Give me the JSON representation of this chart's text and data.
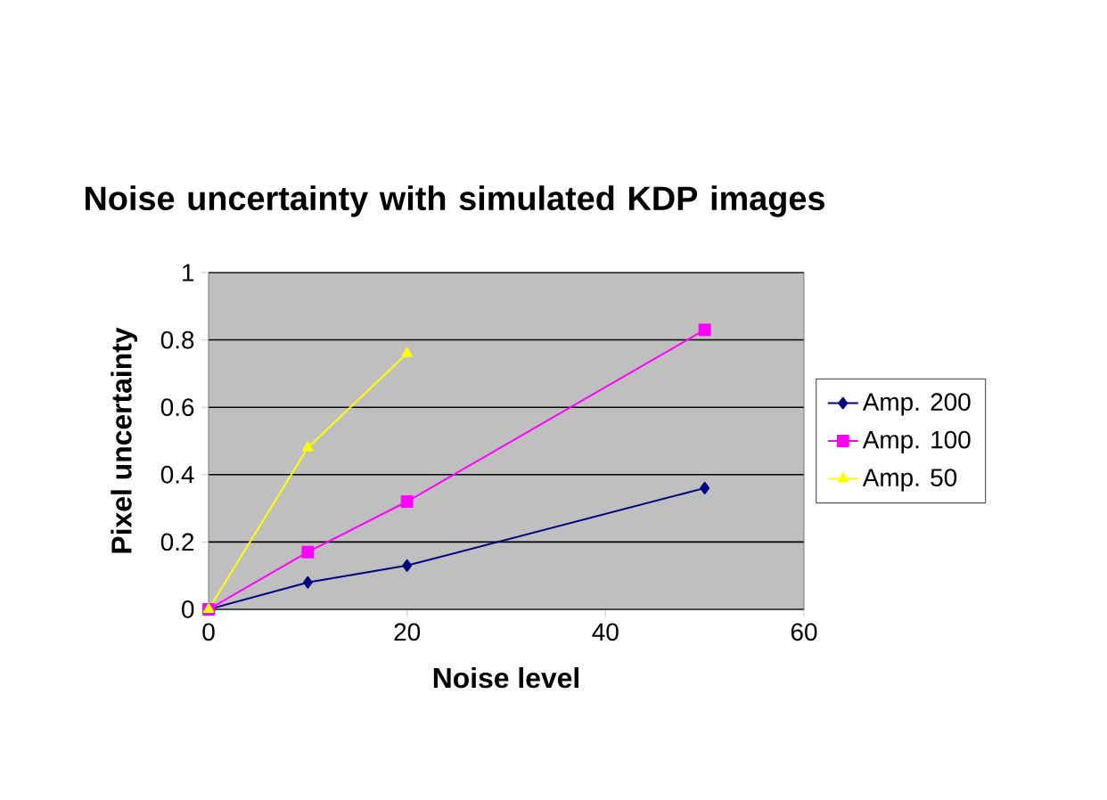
{
  "chart_data": {
    "type": "line",
    "title": "Noise uncertainty with simulated KDP images",
    "xlabel": "Noise level",
    "ylabel": "Pixel uncertainty",
    "xlim": [
      0,
      60
    ],
    "xticks": [
      0,
      20,
      40,
      60
    ],
    "ylim": [
      0,
      1
    ],
    "yticks": [
      0,
      0.2,
      0.4,
      0.6,
      0.8,
      1
    ],
    "grid": "y",
    "legend": "right",
    "series": [
      {
        "name": "Amp. 200",
        "color": "#000080",
        "marker": "diamond",
        "x": [
          0,
          10,
          20,
          50
        ],
        "values": [
          0,
          0.08,
          0.13,
          0.36
        ]
      },
      {
        "name": "Amp. 100",
        "color": "#ff00ff",
        "marker": "square",
        "x": [
          0,
          10,
          20,
          50
        ],
        "values": [
          0,
          0.17,
          0.32,
          0.83
        ]
      },
      {
        "name": "Amp. 50",
        "color": "#ffff00",
        "marker": "triangle",
        "x": [
          0,
          10,
          20
        ],
        "values": [
          0,
          0.48,
          0.76
        ]
      }
    ]
  }
}
